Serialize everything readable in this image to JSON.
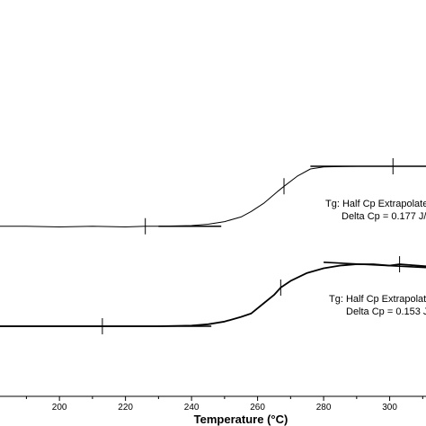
{
  "chart_data": {
    "type": "line",
    "xlabel": "Temperature (°C)",
    "xlim": [
      182,
      311
    ],
    "x_ticks": [
      200,
      220,
      240,
      260,
      280,
      300
    ],
    "grid": false,
    "series": [
      {
        "x": [
          182,
          190,
          200,
          210,
          220,
          226,
          230,
          240,
          245,
          250,
          255,
          258,
          262,
          266,
          268,
          272,
          276,
          280,
          290,
          300,
          311
        ],
        "y": [
          0.1,
          0.1,
          0.09,
          0.1,
          0.09,
          0.1,
          0.1,
          0.11,
          0.13,
          0.17,
          0.24,
          0.32,
          0.45,
          0.62,
          0.7,
          0.85,
          0.96,
          0.99,
          1.0,
          1.0,
          1.0
        ]
      },
      {
        "x": [
          182,
          190,
          200,
          213,
          220,
          230,
          240,
          245,
          250,
          255,
          258,
          262,
          265,
          267,
          270,
          275,
          280,
          285,
          290,
          295,
          300,
          303,
          311
        ],
        "y": [
          -1.4,
          -1.4,
          -1.4,
          -1.4,
          -1.4,
          -1.4,
          -1.39,
          -1.37,
          -1.33,
          -1.26,
          -1.21,
          -1.05,
          -0.93,
          -0.82,
          -0.72,
          -0.6,
          -0.53,
          -0.49,
          -0.47,
          -0.47,
          -0.49,
          -0.47,
          -0.5
        ]
      }
    ],
    "baselines": [
      {
        "x": [
          230,
          249
        ],
        "y": [
          0.1,
          0.1
        ]
      },
      {
        "x": [
          276,
          311
        ],
        "y": [
          1.0,
          1.0
        ]
      },
      {
        "x": [
          182,
          246
        ],
        "y": [
          -1.4,
          -1.4
        ]
      },
      {
        "x": [
          280,
          311
        ],
        "y": [
          -0.44,
          -0.52
        ]
      }
    ],
    "markers": [
      {
        "x": 226,
        "y": 0.1
      },
      {
        "x": 268,
        "y": 0.7
      },
      {
        "x": 301,
        "y": 1.0
      },
      {
        "x": 213,
        "y": -1.4
      },
      {
        "x": 267,
        "y": -0.82
      },
      {
        "x": 303,
        "y": -0.47
      }
    ],
    "annotations": [
      {
        "lines": [
          "Tg: Half Cp Extrapolate",
          "Delta Cp = 0.177 J/"
        ]
      },
      {
        "lines": [
          "Tg: Half Cp Extrapolate",
          "Delta Cp = 0.153 J"
        ]
      }
    ]
  }
}
